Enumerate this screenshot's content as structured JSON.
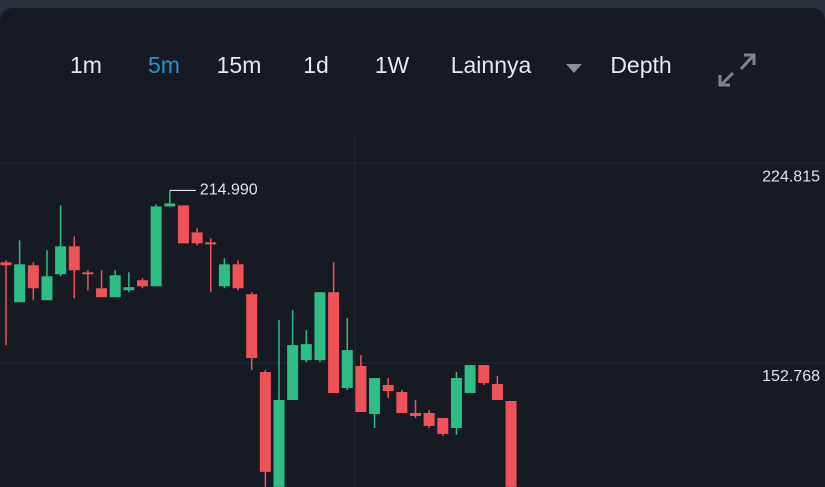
{
  "toolbar": {
    "tabs": [
      "1m",
      "5m",
      "15m",
      "1d",
      "1W",
      "Lainnya",
      "Depth"
    ],
    "active": "5m",
    "active_color": "#2a8fd0"
  },
  "chart_data": {
    "type": "candlestick",
    "open": [
      189.07,
      174.67,
      187.99,
      175.39,
      184.75,
      194.83,
      185.47,
      179.71,
      176.47,
      178.99,
      182.59,
      180.43,
      209.23,
      209.59,
      199.87,
      196.27,
      180.43,
      188.35,
      177.55,
      149.47,
      108.07,
      139.39,
      153.79,
      153.79,
      178.27,
      143.71,
      151.63,
      134.35,
      144.79,
      142.27,
      134.71,
      134.71,
      132.91,
      129.31,
      141.91,
      151.99,
      145.15,
      139.03
    ],
    "high": [
      189.79,
      196.99,
      189.07,
      193.39,
      209.59,
      198.43,
      186.19,
      186.19,
      186.19,
      185.47,
      183.31,
      209.95,
      214.99,
      209.59,
      201.31,
      197.71,
      190.51,
      189.79,
      178.27,
      150.19,
      168.19,
      171.79,
      164.59,
      178.27,
      189.07,
      168.91,
      155.59,
      147.31,
      147.31,
      142.99,
      139.39,
      135.79,
      132.91,
      149.47,
      151.99,
      151.99,
      148.03,
      139.03
    ],
    "low": [
      159.19,
      174.67,
      175.39,
      175.39,
      184.03,
      176.11,
      178.99,
      176.47,
      176.47,
      178.27,
      179.71,
      180.43,
      209.23,
      195.91,
      195.19,
      178.27,
      179.71,
      178.99,
      150.19,
      108.07,
      108.07,
      139.39,
      153.07,
      153.07,
      141.91,
      142.99,
      135.07,
      129.31,
      140.11,
      134.71,
      132.91,
      129.31,
      126.43,
      126.79,
      141.91,
      144.79,
      139.39,
      108.07
    ],
    "close": [
      187.99,
      188.35,
      179.71,
      184.03,
      194.83,
      186.19,
      184.75,
      176.47,
      184.39,
      180.07,
      180.43,
      209.23,
      210.31,
      195.91,
      195.91,
      195.55,
      188.35,
      179.71,
      154.51,
      113.47,
      139.39,
      159.19,
      159.55,
      178.27,
      141.91,
      157.39,
      135.07,
      147.31,
      142.63,
      134.71,
      133.63,
      130.03,
      127.15,
      147.31,
      151.99,
      145.51,
      139.39,
      108.07
    ],
    "up_color": "#2ebd85",
    "down_color": "#f0525a",
    "ylim": [
      108,
      235
    ],
    "yticks": [
      152.768,
      224.815
    ],
    "grid": true,
    "annotation": {
      "value": 214.99,
      "label": "214.990"
    }
  }
}
